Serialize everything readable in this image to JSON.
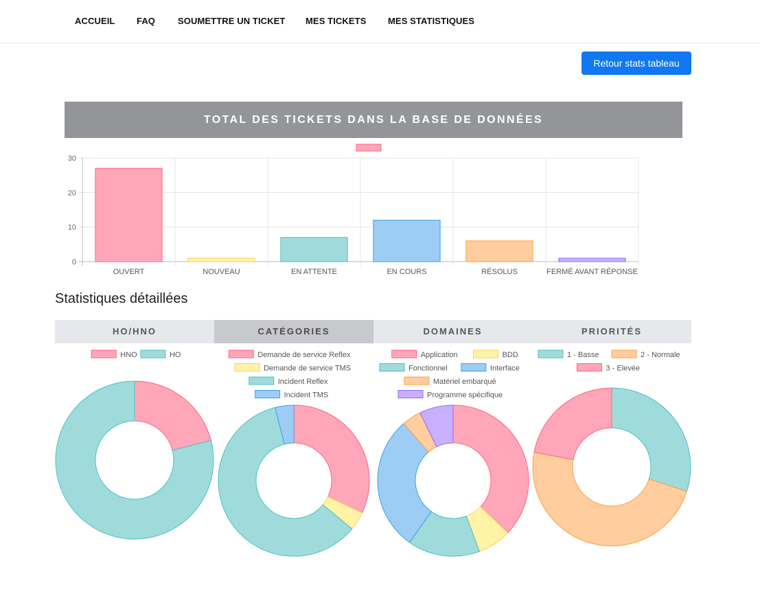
{
  "nav": {
    "items": [
      "ACCUEIL",
      "FAQ",
      "SOUMETTRE UN TICKET",
      "MES TICKETS",
      "MES STATISTIQUES"
    ]
  },
  "actions": {
    "back_label": "Retour stats tableau"
  },
  "total": {
    "header": "TOTAL DES TICKETS DANS LA BASE DE DONNÉES"
  },
  "detail": {
    "title": "Statistiques détaillées"
  },
  "tabs": [
    {
      "label": "HO/HNO",
      "active": false
    },
    {
      "label": "CATÉGORIES",
      "active": true
    },
    {
      "label": "DOMAINES",
      "active": false
    },
    {
      "label": "PRIORITÉS",
      "active": false
    }
  ],
  "colors": {
    "pink": "#ffa6b8",
    "pink_border": "#ff6384",
    "yellow": "#fff3a8",
    "yellow_border": "#ffce56",
    "teal": "#a0dbdb",
    "teal_border": "#4bc0c0",
    "blue": "#9dcdf5",
    "blue_border": "#36a2eb",
    "orange": "#ffcd9e",
    "orange_border": "#ff9f40",
    "purple": "#c8b0ff",
    "purple_border": "#9966ff",
    "accent": "#1177f2"
  },
  "chart_data": [
    {
      "type": "bar",
      "categories": [
        "OUVERT",
        "NOUVEAU",
        "EN ATTENTE",
        "EN COURS",
        "RÉSOLUS",
        "FERMÉ AVANT RÉPONSE"
      ],
      "values": [
        27,
        1,
        7,
        12,
        6,
        1
      ],
      "colors": [
        "pink",
        "yellow",
        "teal",
        "blue",
        "orange",
        "purple"
      ],
      "yticks": [
        0,
        10,
        20,
        30
      ],
      "ylim": [
        0,
        30
      ],
      "legend": [
        ""
      ],
      "grid": true
    },
    {
      "type": "pie",
      "labels": [
        "HNO",
        "HO"
      ],
      "values": [
        21,
        79
      ],
      "colors": [
        "pink",
        "teal"
      ],
      "legend_rows": [
        [
          0,
          1
        ]
      ]
    },
    {
      "type": "pie",
      "labels": [
        "Demande de service Reflex",
        "Demande de service TMS",
        "Incident Reflex",
        "Incident TMS"
      ],
      "values": [
        32,
        4,
        60,
        4
      ],
      "colors": [
        "pink",
        "yellow",
        "teal",
        "blue"
      ],
      "legend_rows": [
        [
          0
        ],
        [
          1
        ],
        [
          2
        ],
        [
          3
        ]
      ]
    },
    {
      "type": "pie",
      "labels": [
        "Application",
        "BDD",
        "Fonctionnel",
        "Interface",
        "Matériel embarqué",
        "Programme spécifique"
      ],
      "values": [
        36,
        7,
        15,
        28,
        4,
        7
      ],
      "colors": [
        "pink",
        "yellow",
        "teal",
        "blue",
        "orange",
        "purple"
      ],
      "legend_rows": [
        [
          0,
          1
        ],
        [
          2,
          3
        ],
        [
          4
        ],
        [
          5
        ]
      ]
    },
    {
      "type": "pie",
      "labels": [
        "1 - Basse",
        "2 - Normale",
        "3 - Elevée"
      ],
      "values": [
        30,
        48,
        22
      ],
      "colors": [
        "teal",
        "orange",
        "pink"
      ],
      "legend_rows": [
        [
          0,
          1
        ],
        [
          2
        ]
      ]
    }
  ]
}
